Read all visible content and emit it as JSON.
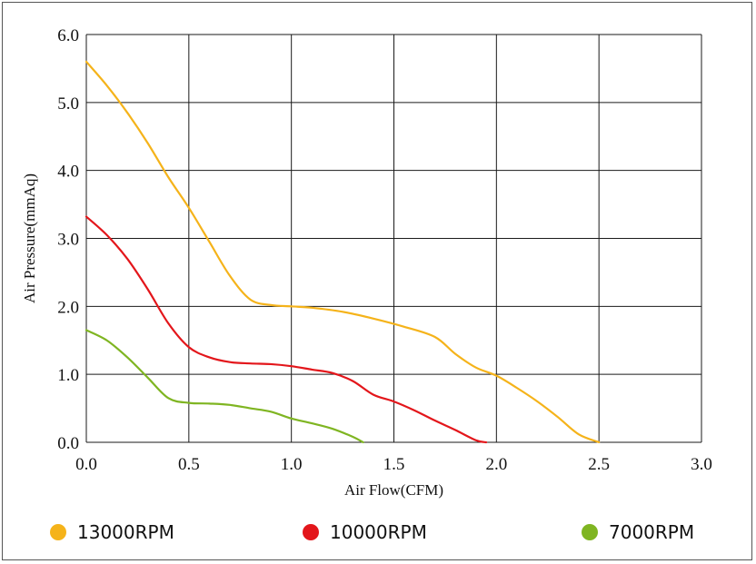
{
  "chart_data": {
    "type": "line",
    "title": "",
    "xlabel": "Air Flow(CFM)",
    "ylabel": "Air Pressure(mmAq)",
    "xlim": [
      0,
      3.0
    ],
    "ylim": [
      0,
      6.0
    ],
    "x_ticks": [
      "0.0",
      "0.5",
      "1.0",
      "1.5",
      "2.0",
      "2.5",
      "3.0"
    ],
    "y_ticks": [
      "0.0",
      "1.0",
      "2.0",
      "3.0",
      "4.0",
      "5.0",
      "6.0"
    ],
    "grid": true,
    "legend_position": "bottom",
    "series": [
      {
        "name": "13000RPM",
        "color": "#f5b31a",
        "points": [
          [
            0.0,
            5.6
          ],
          [
            0.1,
            5.25
          ],
          [
            0.2,
            4.85
          ],
          [
            0.3,
            4.4
          ],
          [
            0.4,
            3.9
          ],
          [
            0.5,
            3.45
          ],
          [
            0.6,
            2.95
          ],
          [
            0.7,
            2.45
          ],
          [
            0.8,
            2.1
          ],
          [
            0.9,
            2.02
          ],
          [
            1.0,
            2.0
          ],
          [
            1.1,
            1.98
          ],
          [
            1.25,
            1.92
          ],
          [
            1.4,
            1.82
          ],
          [
            1.55,
            1.7
          ],
          [
            1.7,
            1.55
          ],
          [
            1.8,
            1.3
          ],
          [
            1.9,
            1.1
          ],
          [
            2.0,
            0.98
          ],
          [
            2.1,
            0.8
          ],
          [
            2.2,
            0.6
          ],
          [
            2.3,
            0.37
          ],
          [
            2.4,
            0.12
          ],
          [
            2.5,
            0.0
          ]
        ]
      },
      {
        "name": "10000RPM",
        "color": "#e3161b",
        "points": [
          [
            0.0,
            3.32
          ],
          [
            0.1,
            3.05
          ],
          [
            0.2,
            2.7
          ],
          [
            0.3,
            2.25
          ],
          [
            0.4,
            1.75
          ],
          [
            0.5,
            1.4
          ],
          [
            0.6,
            1.25
          ],
          [
            0.7,
            1.18
          ],
          [
            0.8,
            1.16
          ],
          [
            0.9,
            1.15
          ],
          [
            1.0,
            1.12
          ],
          [
            1.1,
            1.07
          ],
          [
            1.2,
            1.02
          ],
          [
            1.3,
            0.9
          ],
          [
            1.4,
            0.7
          ],
          [
            1.5,
            0.6
          ],
          [
            1.6,
            0.47
          ],
          [
            1.7,
            0.32
          ],
          [
            1.8,
            0.18
          ],
          [
            1.9,
            0.03
          ],
          [
            1.95,
            0.0
          ]
        ]
      },
      {
        "name": "7000RPM",
        "color": "#7fb522",
        "points": [
          [
            0.0,
            1.65
          ],
          [
            0.1,
            1.5
          ],
          [
            0.2,
            1.25
          ],
          [
            0.3,
            0.95
          ],
          [
            0.4,
            0.65
          ],
          [
            0.5,
            0.58
          ],
          [
            0.6,
            0.57
          ],
          [
            0.7,
            0.55
          ],
          [
            0.8,
            0.5
          ],
          [
            0.9,
            0.45
          ],
          [
            1.0,
            0.35
          ],
          [
            1.1,
            0.28
          ],
          [
            1.2,
            0.2
          ],
          [
            1.3,
            0.08
          ],
          [
            1.35,
            0.0
          ]
        ]
      }
    ]
  }
}
